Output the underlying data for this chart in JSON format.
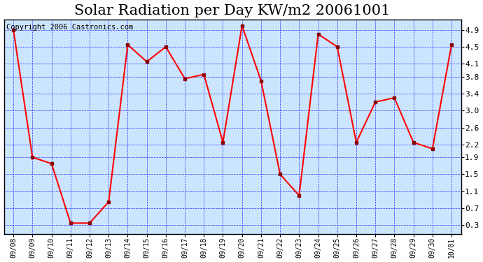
{
  "title": "Solar Radiation per Day KW/m2 20061001",
  "copyright": "Copyright 2006 Castronics.com",
  "dates": [
    "09/08",
    "09/09",
    "09/10",
    "09/11",
    "09/12",
    "09/13",
    "09/14",
    "09/15",
    "09/16",
    "09/17",
    "09/18",
    "09/19",
    "09/20",
    "09/21",
    "09/22",
    "09/23",
    "09/24",
    "09/25",
    "09/26",
    "09/27",
    "09/28",
    "09/29",
    "09/30",
    "10/01"
  ],
  "values": [
    4.9,
    1.9,
    1.75,
    0.35,
    0.35,
    0.85,
    4.55,
    4.15,
    4.5,
    3.75,
    3.85,
    2.25,
    5.0,
    3.7,
    1.5,
    1.0,
    4.8,
    4.5,
    2.25,
    3.2,
    3.3,
    2.25,
    2.1,
    4.55
  ],
  "ylim": [
    0.1,
    5.15
  ],
  "yticks": [
    0.3,
    0.7,
    1.1,
    1.5,
    1.9,
    2.2,
    2.6,
    3.0,
    3.4,
    3.8,
    4.1,
    4.5,
    4.9
  ],
  "line_color": "red",
  "marker_color": "darkred",
  "bg_color": "#cce5ff",
  "grid_color": "blue",
  "title_fontsize": 15,
  "copyright_fontsize": 7.5
}
